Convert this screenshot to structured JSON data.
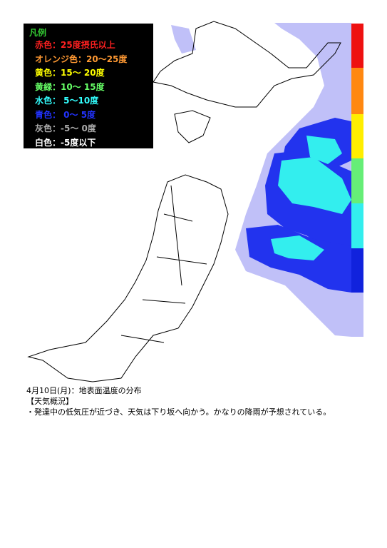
{
  "legend": {
    "title": "凡例",
    "items": [
      {
        "label": "赤色：25度摂氏以上",
        "color": "#ff2020"
      },
      {
        "label": "オレンジ色：20～25度",
        "color": "#ff9933"
      },
      {
        "label": "黄色：15～ 20度",
        "color": "#ffff00"
      },
      {
        "label": "黄緑：10～ 15度",
        "color": "#66ff66"
      },
      {
        "label": "水色： 5～10度",
        "color": "#33ffff"
      },
      {
        "label": "青色： 0～ 5度",
        "color": "#2233ff"
      },
      {
        "label": "灰色：-5～ 0度",
        "color": "#aaaaaa"
      },
      {
        "label": "白色：-5度以下",
        "color": "#ffffff"
      }
    ]
  },
  "caption": {
    "date": "4月10日(月)：地表面温度の分布",
    "heading": "【天気概況】",
    "text": "・発達中の低気圧が近づき、天気は下り坂へ向かう。かなりの降雨が予想されている。"
  }
}
